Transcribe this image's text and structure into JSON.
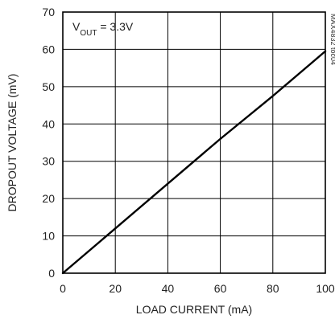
{
  "chart_data": {
    "type": "line",
    "title": "",
    "xlabel": "LOAD CURRENT (mA)",
    "ylabel": "DROPOUT VOLTAGE (mV)",
    "xlim": [
      0,
      100
    ],
    "ylim": [
      0,
      70
    ],
    "x_ticks": [
      0,
      20,
      40,
      60,
      80,
      100
    ],
    "y_ticks": [
      0,
      10,
      20,
      30,
      40,
      50,
      60,
      70
    ],
    "x_tick_labels": [
      "0",
      "20",
      "40",
      "60",
      "80",
      "100"
    ],
    "y_tick_labels": [
      "0",
      "10",
      "20",
      "30",
      "40",
      "50",
      "60",
      "70"
    ],
    "grid": true,
    "series": [
      {
        "x": [
          0,
          20,
          40,
          60,
          80,
          100
        ],
        "y": [
          0,
          12,
          24,
          36,
          47.5,
          59.5
        ]
      }
    ],
    "annotations": {
      "condition_prefix": "V",
      "condition_subscript": "OUT",
      "condition_suffix": " = 3.3V",
      "corner_id": "MAX4832 toc04"
    },
    "colors": {
      "line": "#000000",
      "grid": "#000000",
      "frame": "#000000"
    }
  }
}
